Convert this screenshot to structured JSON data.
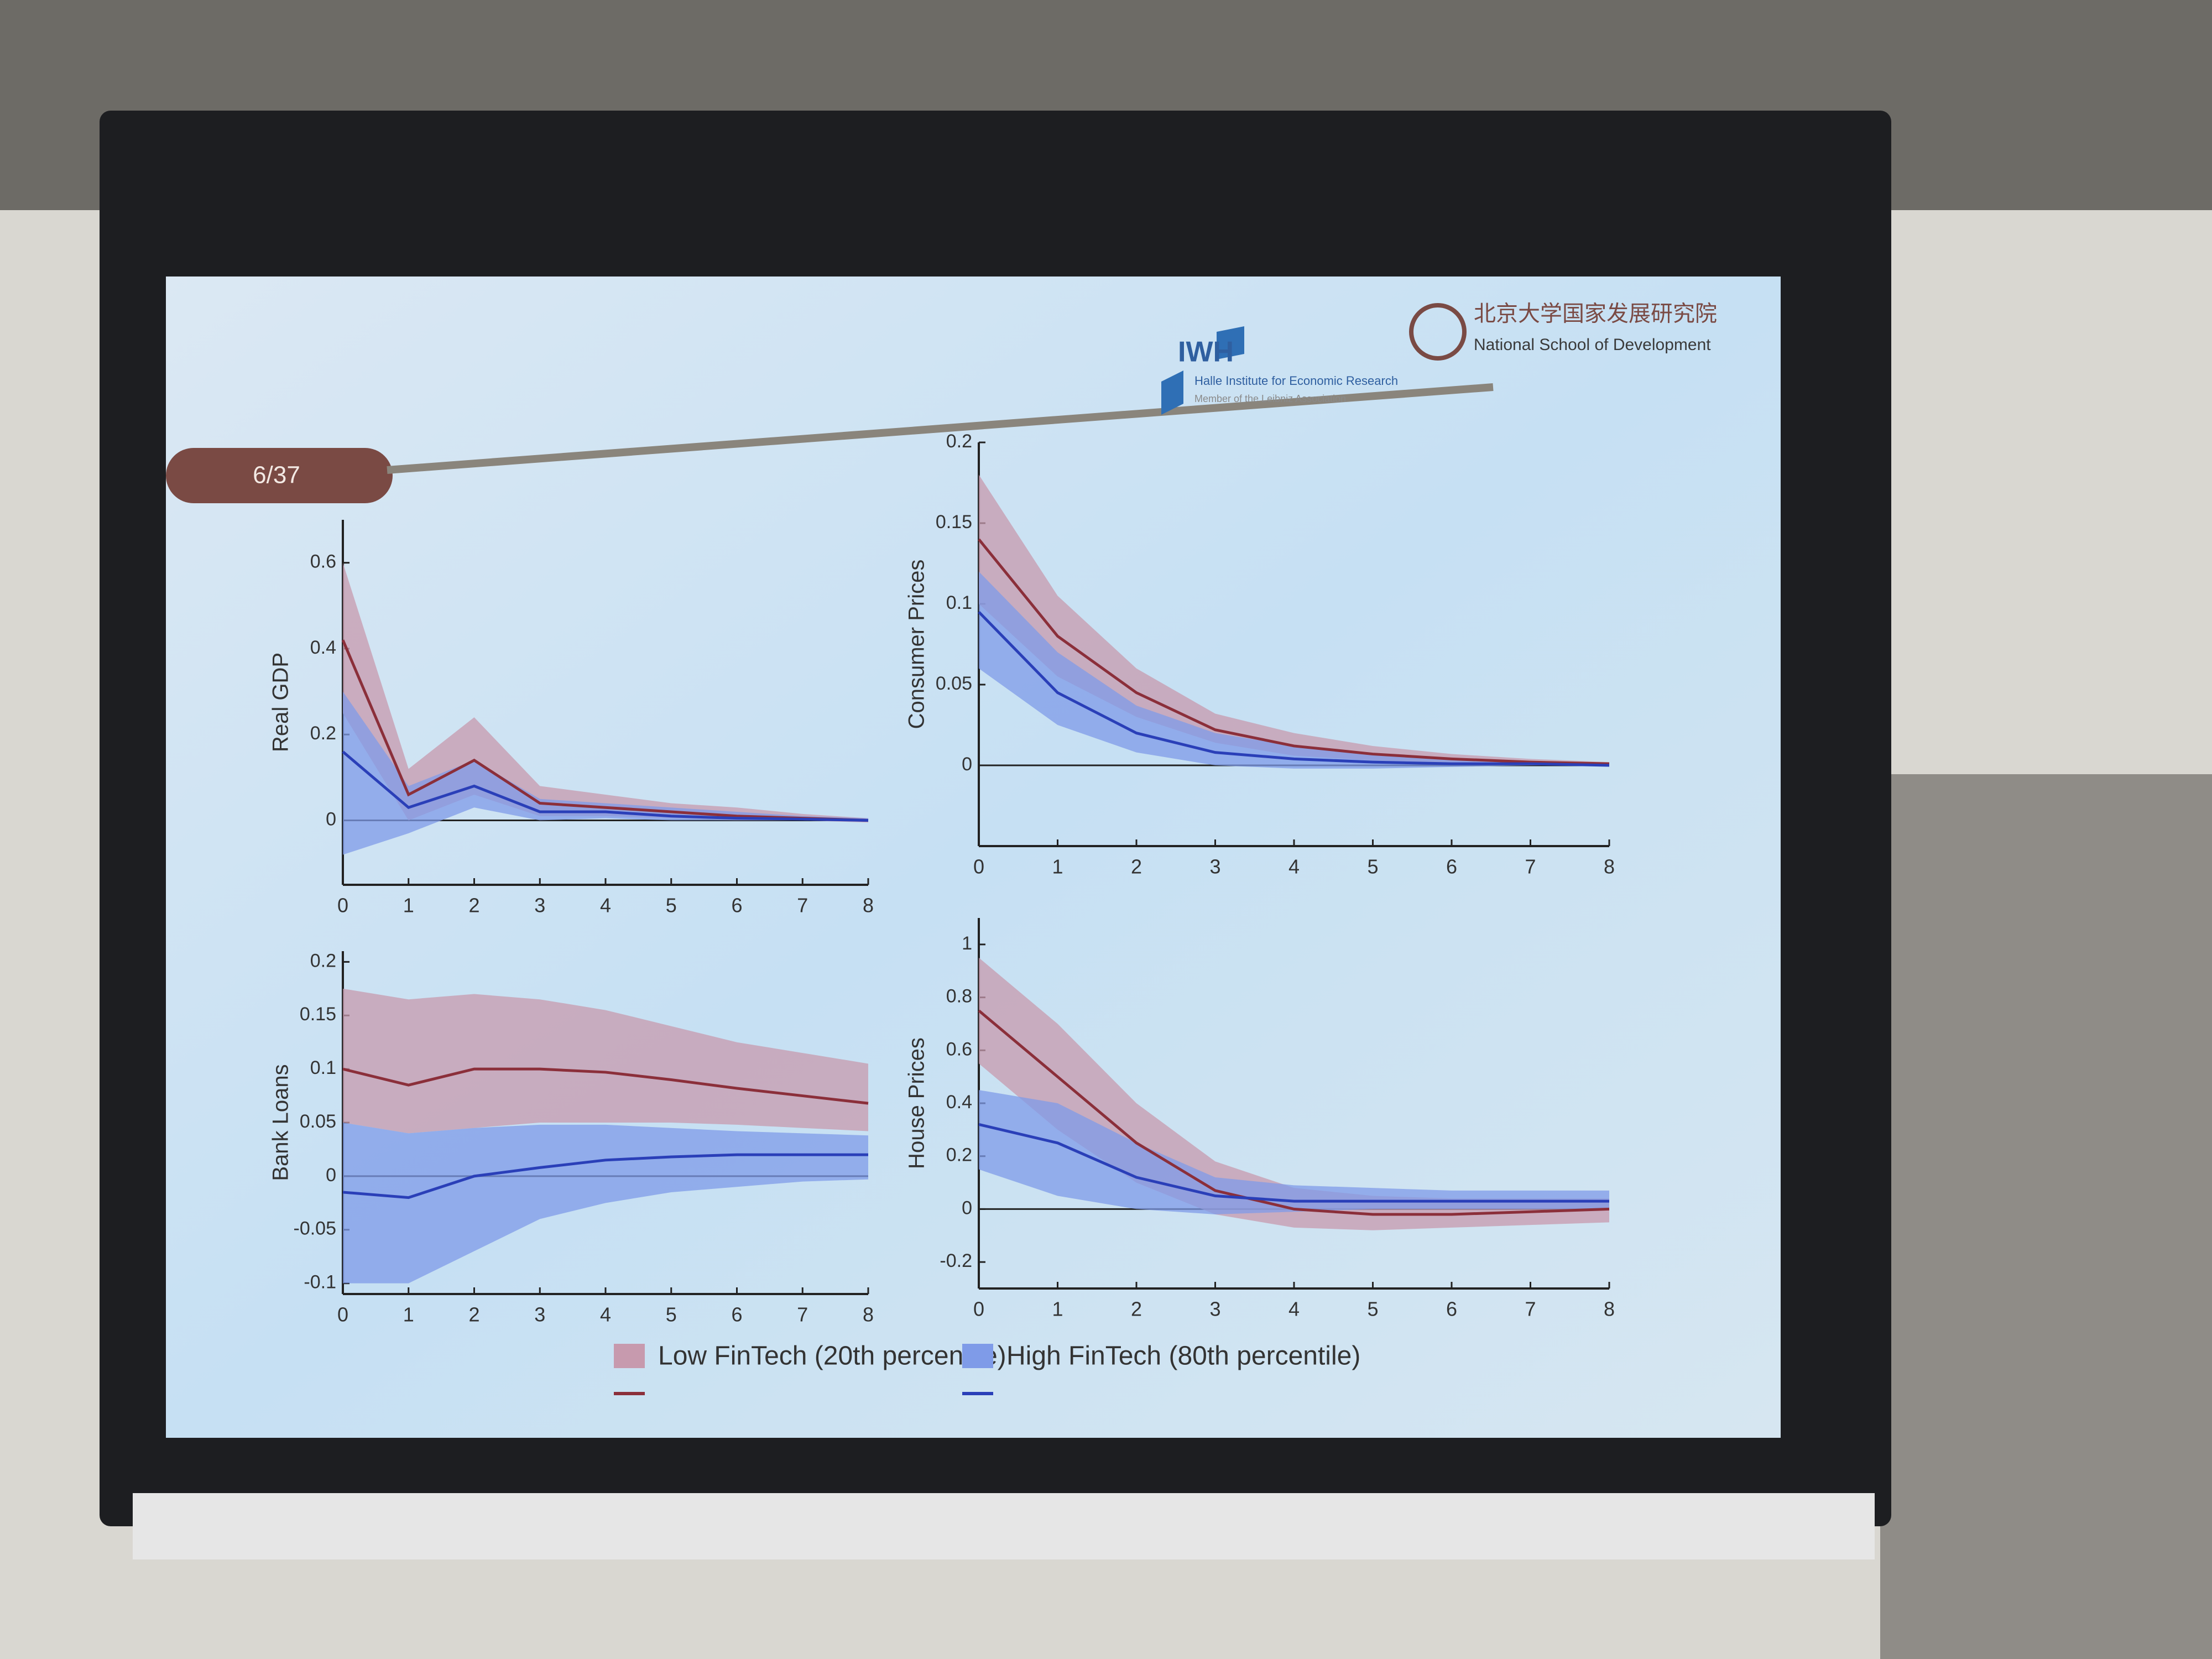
{
  "slide": {
    "page": "6/37",
    "iwh": "IWH",
    "iwh_name": "Halle Institute for Economic Research",
    "iwh_member": "Member of the Leibniz Association",
    "nsd_cn": "北京大学国家发展研究院",
    "nsd_en": "National School of Development"
  },
  "chart_data": [
    {
      "type": "line",
      "ylabel": "Real GDP",
      "x": [
        0,
        1,
        2,
        3,
        4,
        5,
        6,
        7,
        8
      ],
      "xlim": [
        0,
        8
      ],
      "xticks": [
        0,
        1,
        2,
        3,
        4,
        5,
        6,
        7,
        8
      ],
      "ylim": [
        -0.15,
        0.7
      ],
      "yticks": [
        0,
        0.2,
        0.4,
        0.6
      ],
      "series": [
        {
          "name": "Low FinTech (20th percentile)",
          "color": "#8b2f3a",
          "fill": "#c79aae",
          "values": [
            0.42,
            0.06,
            0.14,
            0.04,
            0.03,
            0.02,
            0.01,
            0.005,
            0
          ],
          "upper": [
            0.6,
            0.12,
            0.24,
            0.08,
            0.06,
            0.04,
            0.03,
            0.015,
            0.005
          ],
          "lower": [
            0.25,
            0,
            0.06,
            0.01,
            0.01,
            0.005,
            0,
            0,
            -0.005
          ]
        },
        {
          "name": "High FinTech (80th percentile)",
          "color": "#2a3fb8",
          "fill": "#7f9be8",
          "values": [
            0.16,
            0.03,
            0.08,
            0.02,
            0.02,
            0.01,
            0.005,
            0.003,
            0
          ],
          "upper": [
            0.3,
            0.08,
            0.14,
            0.05,
            0.04,
            0.03,
            0.02,
            0.01,
            0.005
          ],
          "lower": [
            -0.08,
            -0.03,
            0.03,
            0,
            0.005,
            0,
            0,
            0,
            -0.003
          ]
        }
      ]
    },
    {
      "type": "line",
      "ylabel": "Consumer Prices",
      "x": [
        0,
        1,
        2,
        3,
        4,
        5,
        6,
        7,
        8
      ],
      "xlim": [
        0,
        8
      ],
      "xticks": [
        0,
        1,
        2,
        3,
        4,
        5,
        6,
        7,
        8
      ],
      "ylim": [
        -0.05,
        0.2
      ],
      "yticks": [
        0,
        0.05,
        0.1,
        0.15,
        0.2
      ],
      "series": [
        {
          "name": "Low FinTech (20th percentile)",
          "color": "#8b2f3a",
          "fill": "#c79aae",
          "values": [
            0.14,
            0.08,
            0.045,
            0.022,
            0.012,
            0.007,
            0.004,
            0.002,
            0.001
          ],
          "upper": [
            0.18,
            0.105,
            0.06,
            0.032,
            0.02,
            0.012,
            0.007,
            0.004,
            0.002
          ],
          "lower": [
            0.1,
            0.055,
            0.03,
            0.014,
            0.006,
            0.003,
            0.001,
            0,
            0
          ]
        },
        {
          "name": "High FinTech (80th percentile)",
          "color": "#2a3fb8",
          "fill": "#7f9be8",
          "values": [
            0.095,
            0.045,
            0.02,
            0.008,
            0.004,
            0.002,
            0.001,
            0.001,
            0
          ],
          "upper": [
            0.12,
            0.07,
            0.037,
            0.02,
            0.012,
            0.007,
            0.004,
            0.002,
            0.001
          ],
          "lower": [
            0.06,
            0.025,
            0.008,
            0,
            -0.002,
            -0.002,
            -0.001,
            0,
            0
          ]
        }
      ]
    },
    {
      "type": "line",
      "ylabel": "Bank Loans",
      "x": [
        0,
        1,
        2,
        3,
        4,
        5,
        6,
        7,
        8
      ],
      "xlim": [
        0,
        8
      ],
      "xticks": [
        0,
        1,
        2,
        3,
        4,
        5,
        6,
        7,
        8
      ],
      "ylim": [
        -0.11,
        0.21
      ],
      "yticks": [
        -0.1,
        -0.05,
        0,
        0.05,
        0.1,
        0.15,
        0.2
      ],
      "series": [
        {
          "name": "Low FinTech (20th percentile)",
          "color": "#8b2f3a",
          "fill": "#c79aae",
          "values": [
            0.1,
            0.085,
            0.1,
            0.1,
            0.097,
            0.09,
            0.082,
            0.075,
            0.068
          ],
          "upper": [
            0.175,
            0.165,
            0.17,
            0.165,
            0.155,
            0.14,
            0.125,
            0.115,
            0.105
          ],
          "lower": [
            0.05,
            0.04,
            0.045,
            0.05,
            0.05,
            0.05,
            0.048,
            0.045,
            0.042
          ]
        },
        {
          "name": "High FinTech (80th percentile)",
          "color": "#2a3fb8",
          "fill": "#7f9be8",
          "values": [
            -0.015,
            -0.02,
            0,
            0.008,
            0.015,
            0.018,
            0.02,
            0.02,
            0.02
          ],
          "upper": [
            0.05,
            0.04,
            0.045,
            0.048,
            0.048,
            0.045,
            0.042,
            0.04,
            0.038
          ],
          "lower": [
            -0.1,
            -0.1,
            -0.07,
            -0.04,
            -0.025,
            -0.015,
            -0.01,
            -0.005,
            -0.003
          ]
        }
      ]
    },
    {
      "type": "line",
      "ylabel": "House Prices",
      "x": [
        0,
        1,
        2,
        3,
        4,
        5,
        6,
        7,
        8
      ],
      "xlim": [
        0,
        8
      ],
      "xticks": [
        0,
        1,
        2,
        3,
        4,
        5,
        6,
        7,
        8
      ],
      "ylim": [
        -0.3,
        1.1
      ],
      "yticks": [
        -0.2,
        0,
        0.2,
        0.4,
        0.6,
        0.8,
        1
      ],
      "series": [
        {
          "name": "Low FinTech (20th percentile)",
          "color": "#8b2f3a",
          "fill": "#c79aae",
          "values": [
            0.75,
            0.5,
            0.25,
            0.07,
            0,
            -0.02,
            -0.02,
            -0.01,
            0
          ],
          "upper": [
            0.95,
            0.7,
            0.4,
            0.18,
            0.08,
            0.05,
            0.04,
            0.04,
            0.04
          ],
          "lower": [
            0.55,
            0.3,
            0.1,
            -0.02,
            -0.07,
            -0.08,
            -0.07,
            -0.06,
            -0.05
          ]
        },
        {
          "name": "High FinTech (80th percentile)",
          "color": "#2a3fb8",
          "fill": "#7f9be8",
          "values": [
            0.32,
            0.25,
            0.12,
            0.05,
            0.03,
            0.03,
            0.03,
            0.03,
            0.03
          ],
          "upper": [
            0.45,
            0.4,
            0.25,
            0.12,
            0.09,
            0.08,
            0.07,
            0.07,
            0.07
          ],
          "lower": [
            0.15,
            0.05,
            0,
            -0.02,
            -0.01,
            0,
            0,
            0,
            0
          ]
        }
      ]
    }
  ]
}
